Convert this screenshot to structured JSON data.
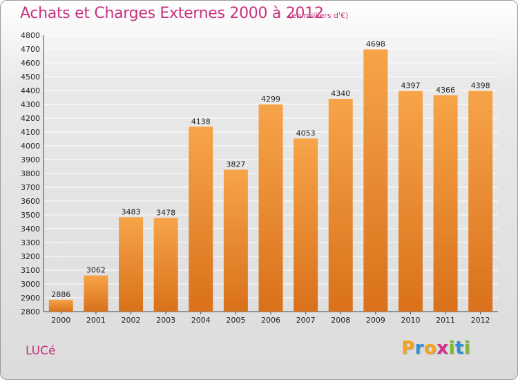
{
  "page": {
    "title": "Achats et Charges Externes 2000 à 2012",
    "subtitle": "(en milliers d'€)",
    "commune": "LUCé",
    "logo_letters": [
      "P",
      "r",
      "o",
      "x",
      "i",
      "t",
      "i"
    ],
    "logo_colors": [
      "#f7a21b",
      "#2d8fd6",
      "#f7a21b",
      "#d62f8a",
      "#7cb82f",
      "#2d8fd6",
      "#7cb82f"
    ]
  },
  "colors": {
    "bar_light": "#f7a449",
    "bar_dark": "#d9711a",
    "title": "#c8327f"
  },
  "chart_data": {
    "type": "bar",
    "categories": [
      "2000",
      "2001",
      "2002",
      "2003",
      "2004",
      "2005",
      "2006",
      "2007",
      "2008",
      "2009",
      "2010",
      "2011",
      "2012"
    ],
    "values": [
      2886,
      3062,
      3483,
      3478,
      4138,
      3827,
      4299,
      4053,
      4340,
      4698,
      4397,
      4366,
      4398
    ],
    "title": "Achats et Charges Externes 2000 à 2012",
    "ylim": [
      2800,
      4800
    ],
    "yticks": [
      2800,
      2900,
      3000,
      3100,
      3200,
      3300,
      3400,
      3500,
      3600,
      3700,
      3800,
      3900,
      4000,
      4100,
      4200,
      4300,
      4400,
      4500,
      4600,
      4700,
      4800
    ],
    "grid": true,
    "data_labels": true
  }
}
